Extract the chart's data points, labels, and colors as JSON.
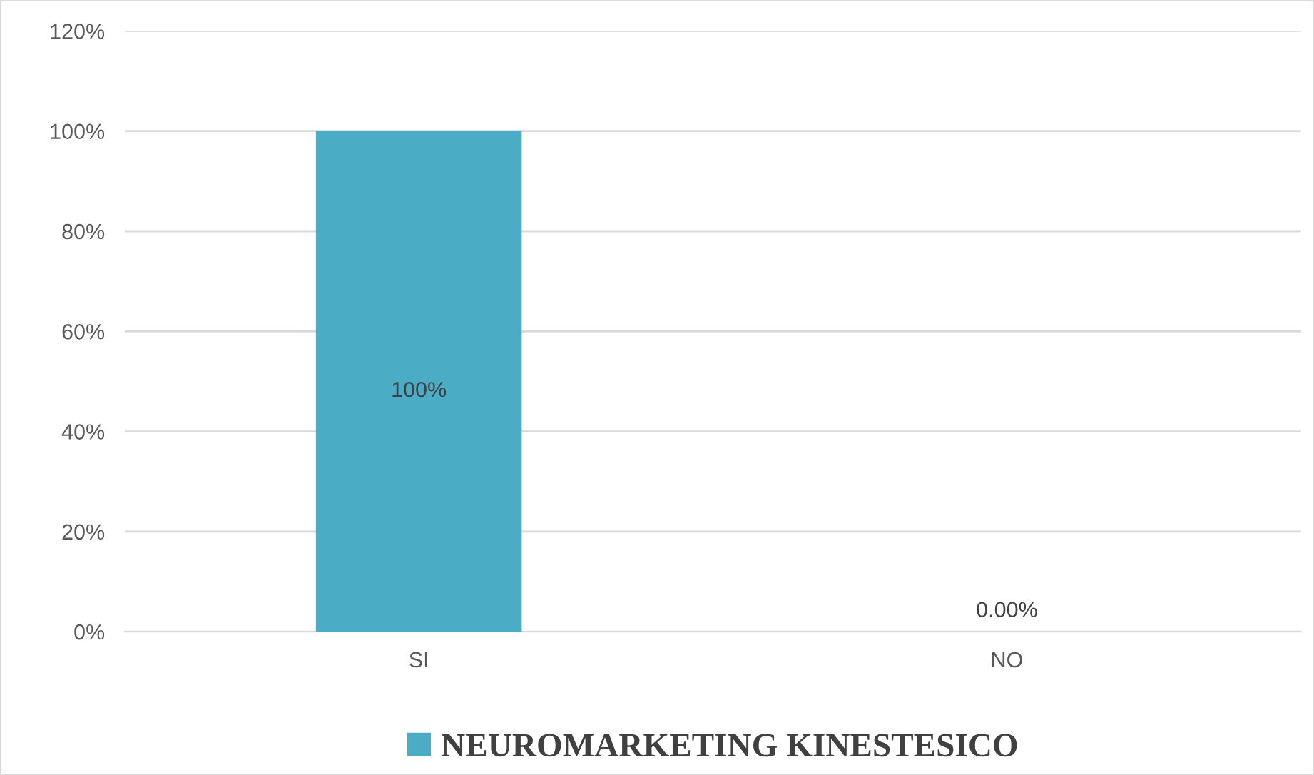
{
  "chart_data": {
    "type": "bar",
    "categories": [
      "SI",
      "NO"
    ],
    "series": [
      {
        "name": "NEUROMARKETING KINESTESICO",
        "color": "#4bacc6",
        "values": [
          100,
          0
        ],
        "value_labels": [
          "100%",
          "0.00%"
        ]
      }
    ],
    "ylim": [
      0,
      120
    ],
    "yticks": [
      {
        "value": 0,
        "label": "0%"
      },
      {
        "value": 20,
        "label": "20%"
      },
      {
        "value": 40,
        "label": "40%"
      },
      {
        "value": 60,
        "label": "60%"
      },
      {
        "value": 80,
        "label": "80%"
      },
      {
        "value": 100,
        "label": "100%"
      },
      {
        "value": 120,
        "label": "120%"
      }
    ],
    "grid": "y",
    "legend": "bottom"
  }
}
